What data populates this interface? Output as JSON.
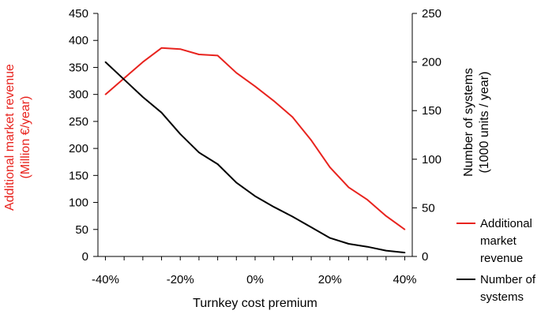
{
  "chart_data": {
    "type": "line",
    "xlabel": "Turnkey cost premium",
    "ylabel_left_line1": "Additional market revenue",
    "ylabel_left_line2": "(Million €/year)",
    "ylabel_right_line1": "Number of systems",
    "ylabel_right_line2": "(1000 units / year)",
    "x_ticks": [
      -40,
      -20,
      0,
      20,
      40
    ],
    "x_tick_labels": [
      "-40%",
      "-20%",
      "0%",
      "20%",
      "40%"
    ],
    "xlim": [
      -42,
      42
    ],
    "y_left_ticks": [
      0,
      50,
      100,
      150,
      200,
      250,
      300,
      350,
      400,
      450
    ],
    "y_left_lim": [
      0,
      450
    ],
    "y_right_ticks": [
      0,
      50,
      100,
      150,
      200,
      250
    ],
    "y_right_lim": [
      0,
      250
    ],
    "grid": false,
    "legend_position": "bottom-right",
    "colors": {
      "revenue": "#e8231e",
      "systems": "#000000",
      "left_axis_label": "#e8231e"
    },
    "series": [
      {
        "key": "revenue",
        "name": "Additional market revenue",
        "legend_lines": [
          "Additional",
          "market",
          "revenue"
        ],
        "axis": "left",
        "x": [
          -40,
          -35,
          -30,
          -25,
          -20,
          -15,
          -10,
          -5,
          0,
          5,
          10,
          15,
          20,
          25,
          30,
          35,
          40
        ],
        "values": [
          300,
          330,
          360,
          386,
          384,
          374,
          372,
          340,
          315,
          288,
          258,
          215,
          165,
          128,
          105,
          75,
          50
        ]
      },
      {
        "key": "systems",
        "name": "Number of systems",
        "legend_lines": [
          "Number of",
          "systems"
        ],
        "axis": "right",
        "x": [
          -40,
          -35,
          -30,
          -25,
          -20,
          -15,
          -10,
          -5,
          0,
          5,
          10,
          15,
          20,
          25,
          30,
          35,
          40
        ],
        "values": [
          200,
          182,
          164,
          148,
          126,
          107,
          95,
          76,
          62,
          51,
          41,
          30,
          19,
          13,
          10,
          6,
          4
        ]
      }
    ]
  }
}
